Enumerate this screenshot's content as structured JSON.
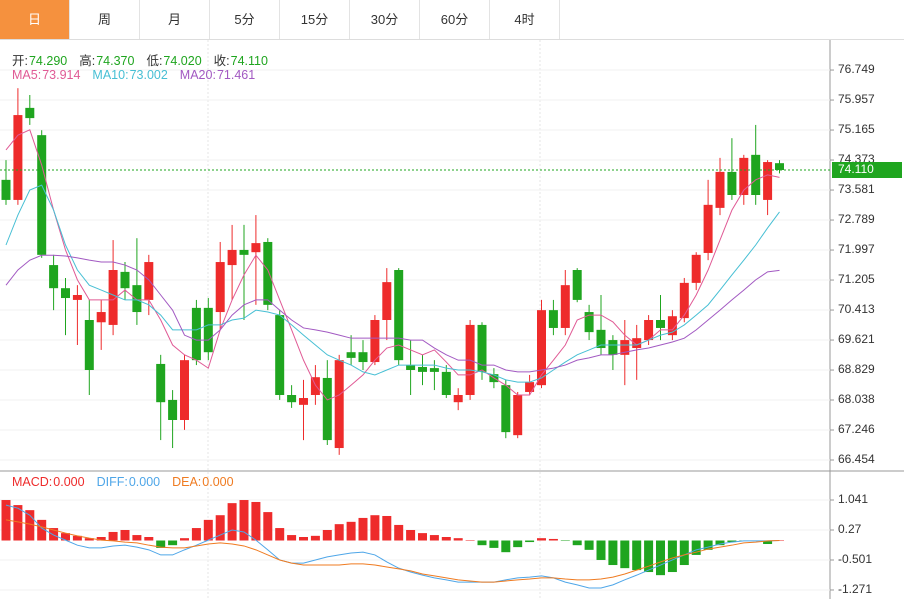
{
  "tabs": [
    {
      "label": "日",
      "active": true
    },
    {
      "label": "周",
      "active": false
    },
    {
      "label": "月",
      "active": false
    },
    {
      "label": "5分",
      "active": false
    },
    {
      "label": "15分",
      "active": false
    },
    {
      "label": "30分",
      "active": false
    },
    {
      "label": "60分",
      "active": false
    },
    {
      "label": "4时",
      "active": false
    }
  ],
  "chart_data": [
    {
      "type": "candlestick",
      "up_color": "#ee2b2b",
      "down_color": "#1fa51f",
      "info": [
        {
          "label": "开:",
          "value": "74.290"
        },
        {
          "label": "高:",
          "value": "74.370"
        },
        {
          "label": "低:",
          "value": "74.020"
        },
        {
          "label": "收:",
          "value": "74.110"
        }
      ],
      "info_color": "#1fa51f",
      "ma": [
        {
          "name": "MA5:",
          "value": "73.914",
          "color": "#e05a95",
          "values": [
            74.64,
            75.03,
            75.17,
            74.24,
            73.05,
            72.0,
            71.21,
            70.68,
            70.68,
            70.68,
            70.94,
            70.68,
            70.68,
            70.15,
            69.49,
            69.23,
            69.09,
            68.88,
            69.89,
            70.68,
            71.34,
            71.86,
            71.47,
            70.68,
            69.89,
            69.09,
            68.43,
            68.04,
            68.17,
            68.43,
            68.7,
            69.09,
            69.41,
            69.49,
            69.36,
            69.23,
            69.36,
            69.04,
            68.7,
            68.7,
            68.83,
            68.62,
            68.43,
            68.17,
            68.17,
            68.7,
            69.09,
            69.49,
            70.15,
            70.28,
            70.28,
            70.1,
            69.75,
            69.49,
            69.62,
            69.89,
            69.89,
            70.28,
            70.81,
            71.47,
            72.26,
            73.05,
            73.58,
            73.85,
            73.98,
            73.914
          ]
        },
        {
          "name": "MA10:",
          "value": "73.002",
          "color": "#47bfd4",
          "values": [
            72.13,
            72.92,
            73.58,
            73.71,
            73.05,
            72.13,
            71.47,
            71.07,
            70.94,
            70.81,
            70.68,
            70.68,
            70.55,
            70.28,
            69.89,
            69.89,
            69.89,
            70.02,
            70.02,
            70.15,
            70.2,
            70.41,
            70.36,
            70.28,
            70.02,
            69.75,
            69.49,
            69.23,
            69.09,
            68.96,
            68.78,
            68.7,
            68.83,
            68.96,
            68.96,
            68.96,
            68.96,
            68.88,
            68.83,
            68.83,
            68.78,
            68.7,
            68.57,
            68.51,
            68.51,
            68.62,
            68.83,
            69.04,
            69.23,
            69.36,
            69.49,
            69.49,
            69.49,
            69.49,
            69.62,
            69.75,
            69.83,
            70.02,
            70.28,
            70.55,
            70.94,
            71.34,
            71.73,
            72.13,
            72.58,
            73.002
          ]
        },
        {
          "name": "MA20:",
          "value": "71.461",
          "color": "#a259c2",
          "values": [
            71.07,
            71.47,
            71.73,
            71.86,
            71.86,
            71.84,
            71.79,
            71.73,
            71.68,
            71.68,
            71.6,
            71.47,
            71.21,
            70.81,
            70.41,
            69.75,
            69.62,
            69.62,
            69.89,
            70.28,
            70.55,
            70.68,
            70.68,
            70.41,
            70.15,
            69.94,
            69.89,
            69.83,
            69.75,
            69.67,
            69.67,
            69.67,
            69.67,
            69.67,
            69.62,
            69.62,
            69.41,
            69.23,
            69.09,
            69.09,
            68.96,
            68.96,
            68.83,
            68.78,
            68.78,
            68.83,
            68.88,
            68.96,
            69.09,
            69.15,
            69.23,
            69.23,
            69.3,
            69.36,
            69.41,
            69.49,
            69.57,
            69.67,
            69.89,
            70.15,
            70.41,
            70.68,
            70.94,
            71.21,
            71.42,
            71.461
          ]
        }
      ],
      "open": [
        73.85,
        73.32,
        75.75,
        75.03,
        71.6,
        70.99,
        70.68,
        70.15,
        70.09,
        70.02,
        71.42,
        71.07,
        70.68,
        68.99,
        68.04,
        67.51,
        70.47,
        70.47,
        70.36,
        71.6,
        72.0,
        71.94,
        72.21,
        70.28,
        68.17,
        67.91,
        68.17,
        68.62,
        66.77,
        69.3,
        69.3,
        69.04,
        70.15,
        71.47,
        68.96,
        68.91,
        68.88,
        68.78,
        67.98,
        68.17,
        70.02,
        68.72,
        68.43,
        67.11,
        68.25,
        68.43,
        70.41,
        69.94,
        71.47,
        70.36,
        69.89,
        69.62,
        69.23,
        69.41,
        69.62,
        70.15,
        69.75,
        70.2,
        71.13,
        71.92,
        73.11,
        74.06,
        73.45,
        74.51,
        73.32,
        74.29
      ],
      "high": [
        74.37,
        76.27,
        76.09,
        75.16,
        71.87,
        71.26,
        71.07,
        70.68,
        70.68,
        72.26,
        71.68,
        72.31,
        71.87,
        69.23,
        68.3,
        69.23,
        70.68,
        70.73,
        72.21,
        72.66,
        72.66,
        72.92,
        72.31,
        70.41,
        68.43,
        68.57,
        68.96,
        69.09,
        69.23,
        69.75,
        69.62,
        70.28,
        71.52,
        71.52,
        69.62,
        69.23,
        69.09,
        68.96,
        68.35,
        70.15,
        70.09,
        68.88,
        68.57,
        68.25,
        68.7,
        70.68,
        70.68,
        71.47,
        71.52,
        70.55,
        70.81,
        69.75,
        70.15,
        70.02,
        70.28,
        70.81,
        70.41,
        71.26,
        71.94,
        73.85,
        74.43,
        74.95,
        74.51,
        75.3,
        74.37,
        74.37
      ],
      "low": [
        73.19,
        73.19,
        75.3,
        71.79,
        70.41,
        69.75,
        69.49,
        68.17,
        69.36,
        69.75,
        70.68,
        70.02,
        70.28,
        66.98,
        66.77,
        67.25,
        68.96,
        69.09,
        69.89,
        70.68,
        70.15,
        70.55,
        70.41,
        68.04,
        67.83,
        66.98,
        67.91,
        66.85,
        66.59,
        68.96,
        68.83,
        68.96,
        69.62,
        68.96,
        68.17,
        68.43,
        68.3,
        68.09,
        67.77,
        68.04,
        68.57,
        68.35,
        67.03,
        67.03,
        68.17,
        68.35,
        69.75,
        69.75,
        70.62,
        69.62,
        69.23,
        68.83,
        68.43,
        68.57,
        69.49,
        69.62,
        69.62,
        70.09,
        70.94,
        71.73,
        72.92,
        73.32,
        73.19,
        73.19,
        72.92,
        74.02
      ],
      "close": [
        73.32,
        75.56,
        75.48,
        71.87,
        70.99,
        70.73,
        70.81,
        68.83,
        70.36,
        71.47,
        70.99,
        70.36,
        71.68,
        67.98,
        67.51,
        69.09,
        69.09,
        69.3,
        71.68,
        72.0,
        71.87,
        72.18,
        70.55,
        68.17,
        67.98,
        68.09,
        68.64,
        66.98,
        69.09,
        69.15,
        69.04,
        70.15,
        71.15,
        69.09,
        68.83,
        68.78,
        68.78,
        68.17,
        68.17,
        70.02,
        68.78,
        68.51,
        67.19,
        68.17,
        68.51,
        70.41,
        69.94,
        71.07,
        70.68,
        69.83,
        69.41,
        69.23,
        69.62,
        69.67,
        70.15,
        69.94,
        70.25,
        71.13,
        71.87,
        73.19,
        74.06,
        73.45,
        74.43,
        73.45,
        74.32,
        74.11
      ],
      "ylim": [
        66.19,
        77.41
      ],
      "yticks": [
        76.749,
        75.957,
        75.165,
        74.373,
        73.581,
        72.789,
        71.997,
        71.205,
        70.413,
        69.621,
        68.829,
        68.038,
        67.246,
        66.454
      ],
      "last_price": {
        "value": 74.11,
        "label": "74.110"
      },
      "last_color": "#1fa51f"
    },
    {
      "type": "macd",
      "up_color": "#ee2b2b",
      "down_color": "#1fa51f",
      "histogram": {
        "name": "MACD:",
        "value": "0.000",
        "color": "#ee2b2b",
        "values": [
          1.04,
          0.91,
          0.78,
          0.53,
          0.32,
          0.19,
          0.12,
          0.06,
          0.09,
          0.22,
          0.27,
          0.14,
          0.09,
          -0.19,
          -0.12,
          0.06,
          0.32,
          0.53,
          0.65,
          0.96,
          1.04,
          0.99,
          0.73,
          0.32,
          0.14,
          0.09,
          0.12,
          0.27,
          0.42,
          0.48,
          0.58,
          0.65,
          0.63,
          0.4,
          0.27,
          0.19,
          0.14,
          0.09,
          0.06,
          0.01,
          -0.12,
          -0.19,
          -0.3,
          -0.17,
          -0.04,
          0.06,
          0.04,
          -0.01,
          -0.12,
          -0.24,
          -0.5,
          -0.63,
          -0.71,
          -0.76,
          -0.81,
          -0.89,
          -0.81,
          -0.63,
          -0.37,
          -0.24,
          -0.12,
          -0.04,
          -0.01,
          -0.01,
          -0.09,
          0
        ]
      },
      "series": [
        {
          "name": "DIFF:",
          "value": "0.000",
          "color": "#4ea6e8",
          "values": [
            0.91,
            0.83,
            0.65,
            0.32,
            0.14,
            0.01,
            -0.12,
            -0.19,
            -0.19,
            -0.14,
            -0.12,
            -0.17,
            -0.24,
            -0.37,
            -0.37,
            -0.24,
            -0.12,
            0.01,
            0.14,
            0.27,
            0.22,
            0.01,
            -0.24,
            -0.5,
            -0.58,
            -0.58,
            -0.5,
            -0.42,
            -0.37,
            -0.32,
            -0.3,
            -0.37,
            -0.55,
            -0.71,
            -0.81,
            -0.89,
            -0.96,
            -1.01,
            -1.07,
            -1.07,
            -1.07,
            -1.07,
            -1.01,
            -0.96,
            -0.94,
            -0.91,
            -0.96,
            -1.07,
            -1.14,
            -1.22,
            -1.22,
            -1.14,
            -1.01,
            -0.89,
            -0.76,
            -0.63,
            -0.5,
            -0.37,
            -0.24,
            -0.17,
            -0.09,
            -0.04,
            -0.01,
            -0.01,
            -0.01,
            0
          ]
        },
        {
          "name": "DEA:",
          "value": "0.000",
          "color": "#ef7b21",
          "values": [
            0.53,
            0.48,
            0.42,
            0.35,
            0.27,
            0.19,
            0.12,
            0.06,
            0.01,
            -0.01,
            -0.04,
            -0.06,
            -0.12,
            -0.17,
            -0.19,
            -0.19,
            -0.14,
            -0.09,
            -0.06,
            -0.09,
            -0.14,
            -0.24,
            -0.37,
            -0.5,
            -0.58,
            -0.63,
            -0.63,
            -0.63,
            -0.63,
            -0.6,
            -0.6,
            -0.63,
            -0.68,
            -0.73,
            -0.78,
            -0.86,
            -0.91,
            -0.96,
            -1.01,
            -1.04,
            -1.07,
            -1.07,
            -1.04,
            -1.01,
            -0.99,
            -0.96,
            -0.96,
            -0.99,
            -1.01,
            -1.01,
            -0.99,
            -0.94,
            -0.86,
            -0.76,
            -0.66,
            -0.55,
            -0.45,
            -0.37,
            -0.3,
            -0.22,
            -0.17,
            -0.12,
            -0.06,
            -0.04,
            -0.01,
            0
          ]
        }
      ],
      "ylim": [
        -1.477,
        1.76
      ],
      "yticks": [
        1.041,
        0.27,
        -0.501,
        -1.271
      ]
    }
  ]
}
